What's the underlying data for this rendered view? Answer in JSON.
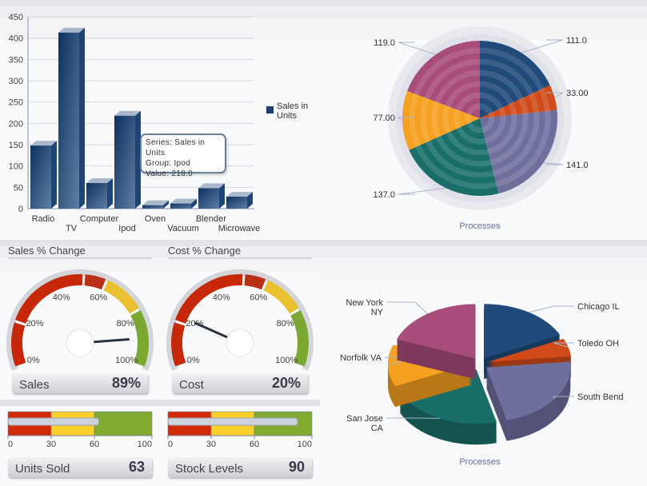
{
  "colors": {
    "bar": "#1b3f6e",
    "pie": [
      "#1f4a7a",
      "#d04a1a",
      "#6f6f9e",
      "#1a6e6a",
      "#f5a020",
      "#a84c7c"
    ],
    "gauge_red": "#c8280a",
    "gauge_yellow": "#e8c030",
    "gauge_green": "#7aa632",
    "bullet_red": "#d12a06",
    "bullet_yellow": "#fcd02a",
    "bullet_green": "#80aa30"
  },
  "tooltip": {
    "series": "Series: Sales in Units",
    "group": "Group: Ipod",
    "value": "Value: 218.0"
  },
  "chart_data": [
    {
      "type": "bar",
      "categories": [
        "Radio",
        "TV",
        "Computer",
        "Ipod",
        "Oven",
        "Vacuum",
        "Blender",
        "Microwave"
      ],
      "series": [
        {
          "name": "Sales in Units",
          "values": [
            148,
            413,
            60,
            218,
            8,
            12,
            48,
            28
          ]
        }
      ],
      "legend": "right",
      "legend_text": [
        "Sales in",
        "Units"
      ],
      "ylim": [
        0,
        450
      ],
      "yticks": [
        "0",
        "50",
        "100",
        "150",
        "200",
        "250",
        "300",
        "350",
        "400",
        "450"
      ],
      "grid": true
    },
    {
      "type": "pie",
      "title": "Processes",
      "values": [
        111.0,
        33.0,
        141.0,
        137.0,
        77.0,
        119.0
      ],
      "labels": [
        "111.0",
        "33.00",
        "141.0",
        "137.0",
        "77.00",
        "119.0"
      ]
    },
    {
      "type": "pie",
      "title": "Processes",
      "style": "3d-exploded",
      "values": [
        111.0,
        33.0,
        141.0,
        137.0,
        77.0,
        119.0
      ],
      "labels": [
        [
          "Chicago IL"
        ],
        [
          "Toledo OH"
        ],
        [
          "South Bend"
        ],
        [
          "San Jose",
          "CA"
        ],
        [
          "Norfolk VA"
        ],
        [
          "New York",
          "NY"
        ]
      ]
    },
    {
      "type": "gauge",
      "gauges": [
        {
          "header": "Sales % Change",
          "label": "Sales",
          "value": 89,
          "display": "89%"
        },
        {
          "header": "Cost % Change",
          "label": "Cost",
          "value": 20,
          "display": "20%"
        }
      ],
      "tick_labels": [
        "0%",
        "20%",
        "40%",
        "60%",
        "80%",
        "100%"
      ],
      "range": [
        0,
        100
      ]
    },
    {
      "type": "bullet",
      "bullets": [
        {
          "label": "Units Sold",
          "value": 63,
          "display": "63"
        },
        {
          "label": "Stock Levels",
          "value": 90,
          "display": "90"
        }
      ],
      "bands": [
        30,
        60,
        100
      ],
      "tick_labels": [
        "0",
        "30",
        "60",
        "100"
      ],
      "range": [
        0,
        100
      ]
    }
  ]
}
